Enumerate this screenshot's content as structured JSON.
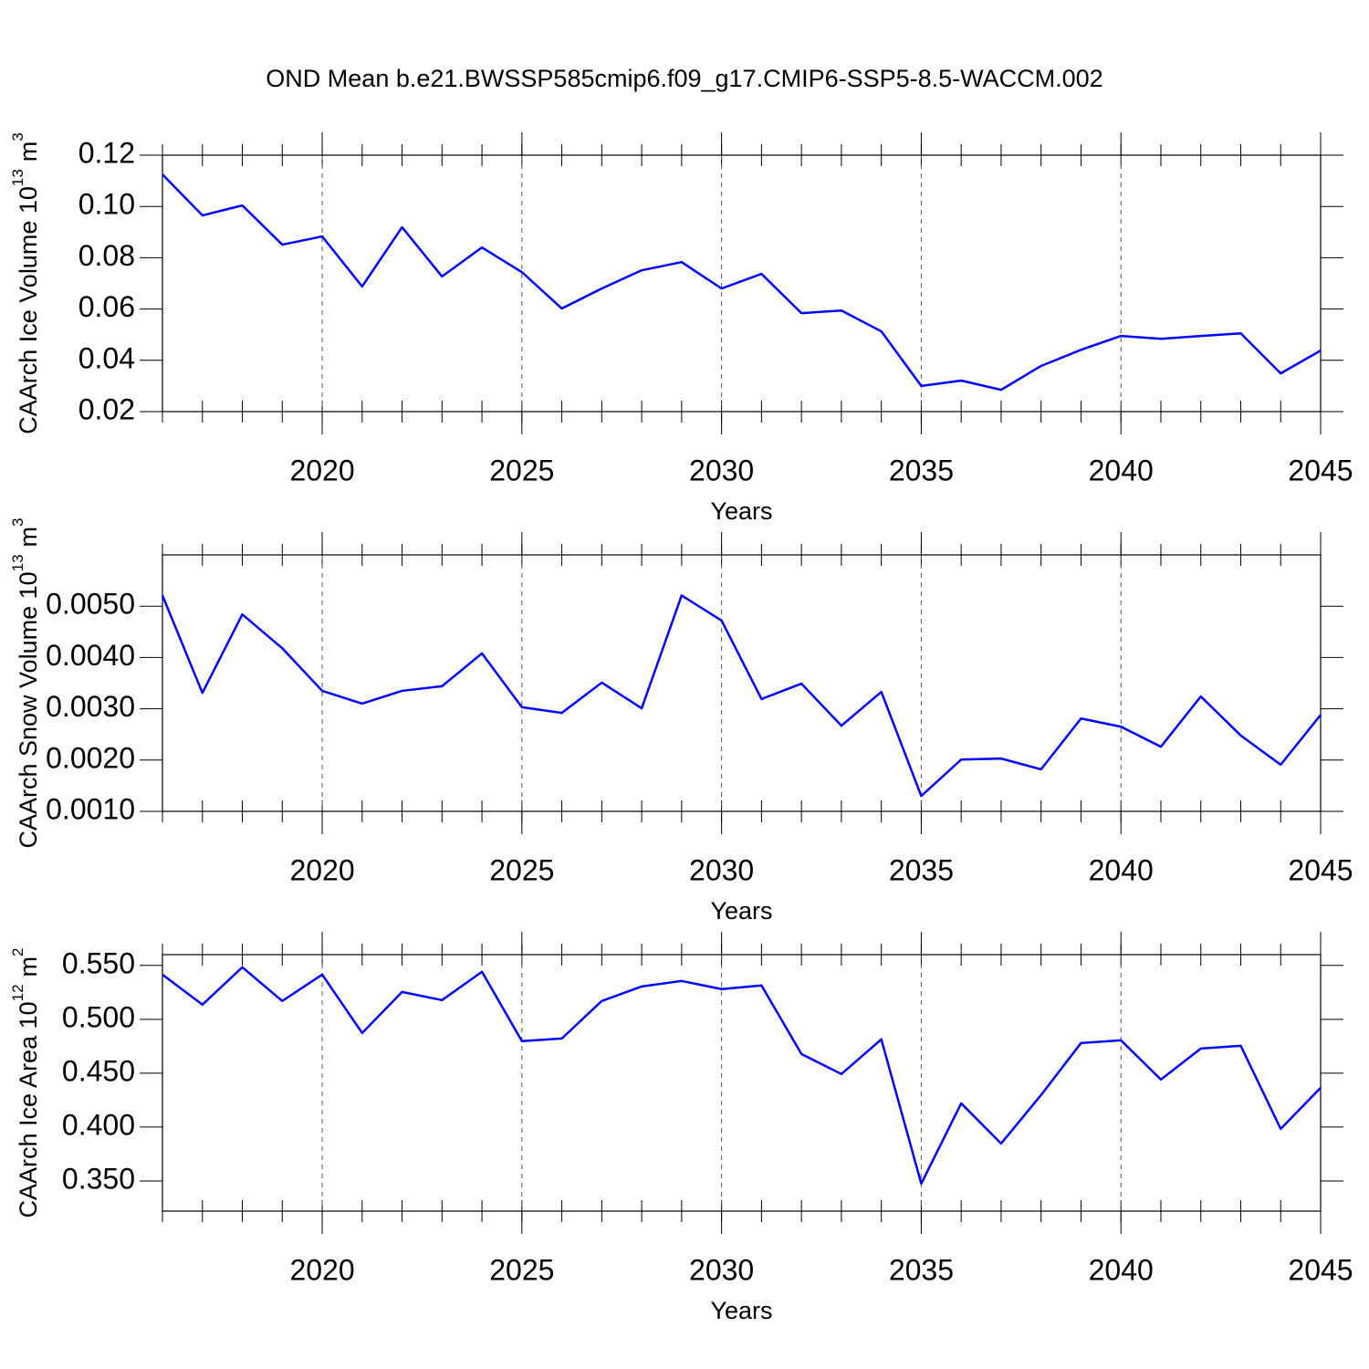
{
  "chart_data": [
    {
      "type": "line",
      "title": "OND Mean b.e21.BWSSP585cmip6.f09_g17.CMIP6-SSP5-8.5-WACCM.002",
      "y_label": {
        "text": "CAArch Ice Volume 10",
        "exp": "13",
        "unit": "m",
        "unit_exp": "3"
      },
      "x_label": "Years",
      "x": [
        2016,
        2017,
        2018,
        2019,
        2020,
        2021,
        2022,
        2023,
        2024,
        2025,
        2026,
        2027,
        2028,
        2029,
        2030,
        2031,
        2032,
        2033,
        2034,
        2035,
        2036,
        2037,
        2038,
        2039,
        2040,
        2041,
        2042,
        2043,
        2044,
        2045
      ],
      "xlim": [
        2016,
        2045
      ],
      "xticks": [
        2020,
        2025,
        2030,
        2035,
        2040,
        2045
      ],
      "ylim": [
        0.02,
        0.12
      ],
      "yticks": [
        0.02,
        0.04,
        0.06,
        0.08,
        {
          "value": 0.1,
          "label": "0.10"
        },
        0.12
      ],
      "grid": true,
      "series": [
        {
          "color": "#0000ff",
          "values": [
            0.1125,
            0.0965,
            0.1004,
            0.0851,
            0.0883,
            0.0688,
            0.0919,
            0.0727,
            0.084,
            0.0744,
            0.0602,
            0.068,
            0.0751,
            0.0783,
            0.068,
            0.0737,
            0.0584,
            0.0594,
            0.0513,
            0.03,
            0.0321,
            0.0285,
            0.0378,
            0.0441,
            0.0495,
            0.0484,
            0.0495,
            0.0505,
            0.0349,
            0.0438
          ]
        }
      ]
    },
    {
      "type": "line",
      "y_label": {
        "text": "CAArch Snow Volume 10",
        "exp": "13",
        "unit": "m",
        "unit_exp": "3"
      },
      "x_label": "Years",
      "x": [
        2016,
        2017,
        2018,
        2019,
        2020,
        2021,
        2022,
        2023,
        2024,
        2025,
        2026,
        2027,
        2028,
        2029,
        2030,
        2031,
        2032,
        2033,
        2034,
        2035,
        2036,
        2037,
        2038,
        2039,
        2040,
        2041,
        2042,
        2043,
        2044,
        2045
      ],
      "xlim": [
        2016,
        2045
      ],
      "xticks": [
        2020,
        2025,
        2030,
        2035,
        2040,
        2045
      ],
      "ylim": [
        0.001,
        0.006
      ],
      "yticks": [
        {
          "value": 0.001,
          "label": "0.0010"
        },
        {
          "value": 0.002,
          "label": "0.0020"
        },
        {
          "value": 0.003,
          "label": "0.0030"
        },
        {
          "value": 0.004,
          "label": "0.0040"
        },
        {
          "value": 0.005,
          "label": "0.0050"
        }
      ],
      "grid": true,
      "series": [
        {
          "color": "#0000ff",
          "values": [
            0.00521,
            0.00331,
            0.00484,
            0.00418,
            0.00335,
            0.0031,
            0.00335,
            0.00344,
            0.00408,
            0.00303,
            0.00292,
            0.00351,
            0.00301,
            0.00521,
            0.00472,
            0.00319,
            0.00349,
            0.00267,
            0.00333,
            0.0013,
            0.00201,
            0.00203,
            0.00182,
            0.00281,
            0.00265,
            0.00226,
            0.00324,
            0.00248,
            0.00191,
            0.00288
          ]
        }
      ]
    },
    {
      "type": "line",
      "y_label": {
        "text": "CAArch Ice Area 10",
        "exp": "12",
        "unit": "m",
        "unit_exp": "2"
      },
      "x_label": "Years",
      "x": [
        2016,
        2017,
        2018,
        2019,
        2020,
        2021,
        2022,
        2023,
        2024,
        2025,
        2026,
        2027,
        2028,
        2029,
        2030,
        2031,
        2032,
        2033,
        2034,
        2035,
        2036,
        2037,
        2038,
        2039,
        2040,
        2041,
        2042,
        2043,
        2044,
        2045
      ],
      "xlim": [
        2016,
        2045
      ],
      "xticks": [
        2020,
        2025,
        2030,
        2035,
        2040,
        2045
      ],
      "ylim": [
        0.322,
        0.56
      ],
      "yticks": [
        {
          "value": 0.35,
          "label": "0.350"
        },
        {
          "value": 0.4,
          "label": "0.400"
        },
        {
          "value": 0.45,
          "label": "0.450"
        },
        {
          "value": 0.5,
          "label": "0.500"
        },
        {
          "value": 0.55,
          "label": "0.550"
        }
      ],
      "grid": true,
      "series": [
        {
          "color": "#0000ff",
          "values": [
            0.5415,
            0.5136,
            0.5483,
            0.517,
            0.5415,
            0.4873,
            0.5254,
            0.5178,
            0.5441,
            0.4797,
            0.4822,
            0.517,
            0.5305,
            0.5356,
            0.528,
            0.5314,
            0.4678,
            0.4492,
            0.4814,
            0.3475,
            0.422,
            0.3847,
            0.4297,
            0.478,
            0.4805,
            0.4441,
            0.4729,
            0.4754,
            0.3983,
            0.4364
          ]
        }
      ]
    }
  ]
}
